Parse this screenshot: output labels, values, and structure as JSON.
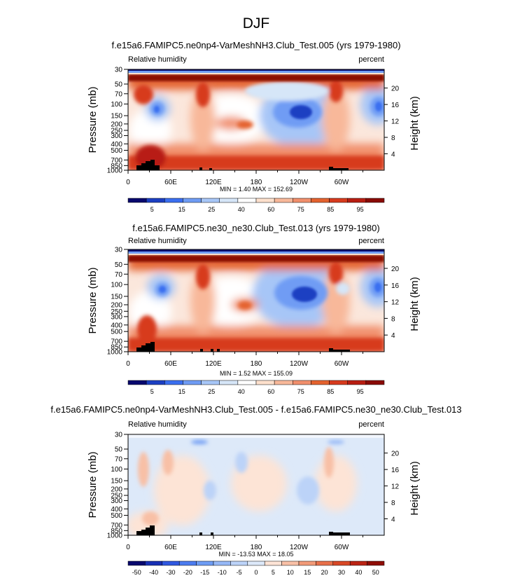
{
  "season": "DJF",
  "panels": [
    {
      "title": "f.e15a6.FAMIPC5.ne0np4-VarMeshNH3.Club_Test.005 (yrs 1979-1980)",
      "left_label": "Relative humidity",
      "right_label": "percent",
      "minmax": "MIN =   1.40  MAX = 152.69",
      "colorbar_labels": [
        "5",
        "15",
        "25",
        "40",
        "60",
        "75",
        "85",
        "95"
      ]
    },
    {
      "title": "f.e15a6.FAMIPC5.ne30_ne30.Club_Test.013 (yrs 1979-1980)",
      "left_label": "Relative humidity",
      "right_label": "percent",
      "minmax": "MIN =   1.52  MAX = 155.09",
      "colorbar_labels": [
        "5",
        "15",
        "25",
        "40",
        "60",
        "75",
        "85",
        "95"
      ]
    },
    {
      "title": "f.e15a6.FAMIPC5.ne0np4-VarMeshNH3.Club_Test.005 - f.e15a6.FAMIPC5.ne30_ne30.Club_Test.013",
      "left_label": "Relative humidity",
      "right_label": "percent",
      "minmax": "MIN = -13.53  MAX = 18.05",
      "colorbar_labels": [
        "-50",
        "-40",
        "-30",
        "-20",
        "-15",
        "-10",
        "-5",
        "0",
        "5",
        "10",
        "15",
        "20",
        "30",
        "40",
        "50"
      ]
    }
  ],
  "axes": {
    "ylabel": "Pressure (mb)",
    "y2label": "Height (km)",
    "pressure_ticks": [
      "30",
      "50",
      "70",
      "100",
      "150",
      "200",
      "250",
      "300",
      "400",
      "500",
      "700",
      "850",
      "1000"
    ],
    "height_ticks": [
      "20",
      "16",
      "12",
      "8",
      "4"
    ],
    "lon_ticks": [
      "0",
      "60E",
      "120E",
      "180",
      "120W",
      "60W"
    ]
  },
  "colors": {
    "rh_palette": [
      "#08086e",
      "#1c3fc2",
      "#3b6ff0",
      "#6f9cf4",
      "#a7c6f7",
      "#d6e6f8",
      "#ffffff",
      "#fde0cc",
      "#f8b89a",
      "#f18f6c",
      "#e4622f",
      "#d73b1e",
      "#b81e12",
      "#8a0b05"
    ],
    "diff_palette": [
      "#08086e",
      "#1830b4",
      "#3058e0",
      "#4c7cf0",
      "#6e9cf4",
      "#96b8f6",
      "#bcd3f8",
      "#dde9f9",
      "#fde4d6",
      "#f8c0a6",
      "#f29a78",
      "#e8704a",
      "#d84826",
      "#bb2414",
      "#8f0d06"
    ]
  },
  "chart_data": [
    {
      "type": "heatmap",
      "title": "f.e15a6.FAMIPC5.ne0np4-VarMeshNH3.Club_Test.005 (yrs 1979-1980)",
      "variable": "Relative humidity",
      "units": "percent",
      "season": "DJF",
      "x": "longitude 0-360",
      "y": "pressure (mb) 1000-30 log scale",
      "contour_levels": [
        5,
        15,
        25,
        40,
        60,
        75,
        85,
        95
      ],
      "min": 1.4,
      "max": 152.69,
      "xlabel": "",
      "ylabel": "Pressure (mb)",
      "y2label": "Height (km)"
    },
    {
      "type": "heatmap",
      "title": "f.e15a6.FAMIPC5.ne30_ne30.Club_Test.013 (yrs 1979-1980)",
      "variable": "Relative humidity",
      "units": "percent",
      "season": "DJF",
      "contour_levels": [
        5,
        15,
        25,
        40,
        60,
        75,
        85,
        95
      ],
      "min": 1.52,
      "max": 155.09,
      "ylabel": "Pressure (mb)",
      "y2label": "Height (km)"
    },
    {
      "type": "heatmap",
      "title": "f.e15a6.FAMIPC5.ne0np4-VarMeshNH3.Club_Test.005 - f.e15a6.FAMIPC5.ne30_ne30.Club_Test.013",
      "variable": "Relative humidity",
      "units": "percent",
      "season": "DJF",
      "contour_levels": [
        -50,
        -40,
        -30,
        -20,
        -15,
        -10,
        -5,
        0,
        5,
        10,
        15,
        20,
        30,
        40,
        50
      ],
      "min": -13.53,
      "max": 18.05,
      "ylabel": "Pressure (mb)",
      "y2label": "Height (km)"
    }
  ]
}
